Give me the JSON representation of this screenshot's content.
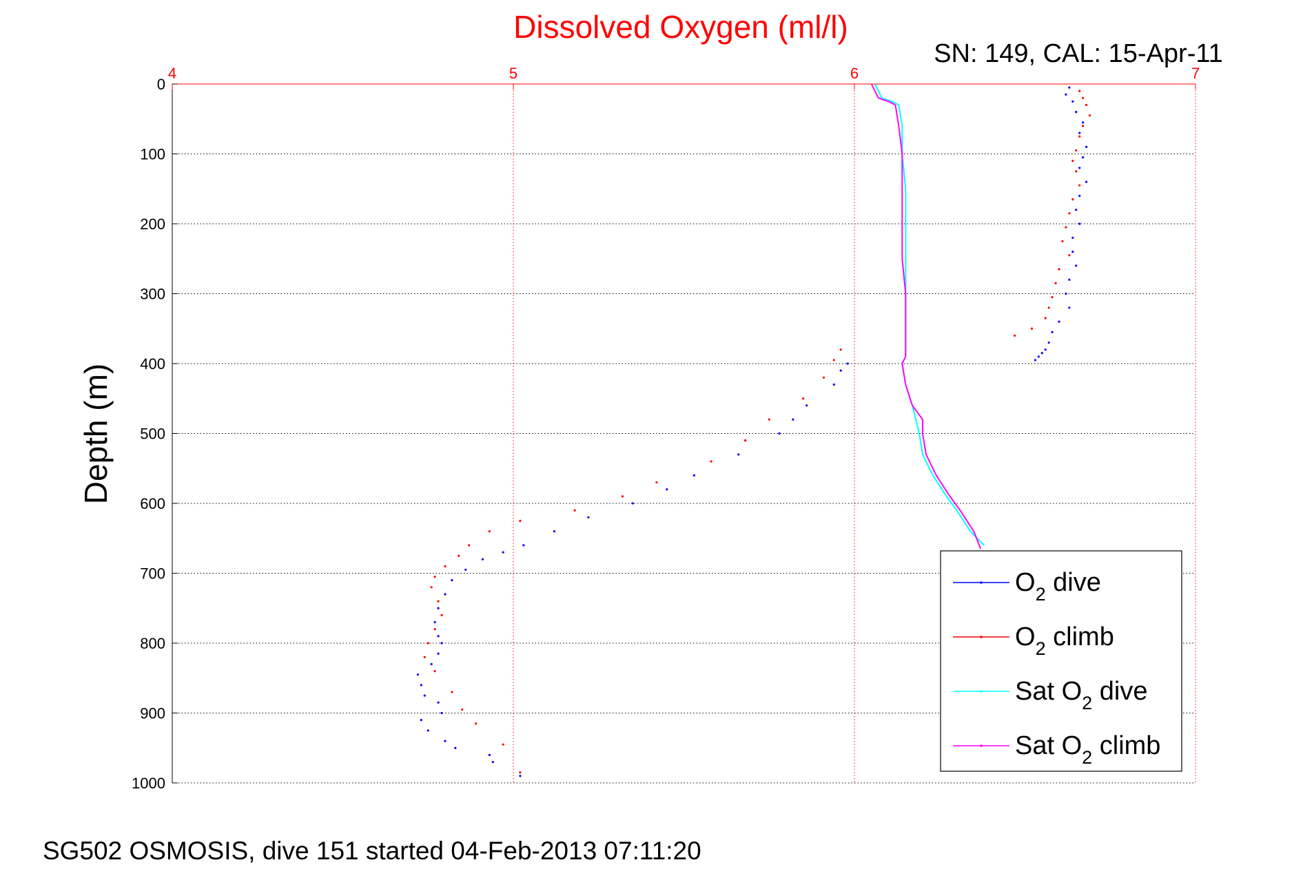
{
  "chart_data": {
    "type": "scatter",
    "title": "Dissolved Oxygen (ml/l)",
    "subtitle": "SN: 149, CAL: 15-Apr-11",
    "xlabel": "",
    "ylabel": "Depth (m)",
    "footer": "SG502 OSMOSIS, dive 151 started 04-Feb-2013 07:11:20",
    "xlim": [
      4,
      7
    ],
    "ylim": [
      0,
      1000
    ],
    "y_reversed": true,
    "x_axis_position": "top",
    "xticks": [
      4,
      5,
      6,
      7
    ],
    "yticks": [
      0,
      100,
      200,
      300,
      400,
      500,
      600,
      700,
      800,
      900,
      1000
    ],
    "grid": true,
    "legend_position": "bottom-right",
    "colors": {
      "o2_dive": "#0000ff",
      "o2_climb": "#ff0000",
      "sat_dive": "#00ffff",
      "sat_climb": "#ff00ff",
      "xaxis": "#ff0000",
      "title": "#ff0000"
    },
    "series": [
      {
        "name": "O2 dive",
        "legend": {
          "main": "O",
          "sub": "2",
          "suffix": " dive"
        },
        "style": "dots",
        "color": "#0000ff",
        "x": [
          6.63,
          6.62,
          6.64,
          6.65,
          6.67,
          6.66,
          6.68,
          6.67,
          6.66,
          6.68,
          6.66,
          6.65,
          6.66,
          6.64,
          6.64,
          6.65,
          6.63,
          6.62,
          6.63,
          6.6,
          6.58,
          6.57,
          6.56,
          6.55,
          6.54,
          6.53,
          5.98,
          5.96,
          5.94,
          5.86,
          5.82,
          5.78,
          5.68,
          5.66,
          5.53,
          5.45,
          5.35,
          5.22,
          5.12,
          5.03,
          4.97,
          4.91,
          4.86,
          4.82,
          4.8,
          4.78,
          4.77,
          4.78,
          4.79,
          4.78,
          4.76,
          4.72,
          4.73,
          4.74,
          4.78,
          4.79,
          4.73,
          4.75,
          4.8,
          4.83,
          4.93,
          4.94,
          5.02
        ],
        "y": [
          5,
          15,
          25,
          40,
          55,
          70,
          90,
          105,
          120,
          140,
          160,
          180,
          200,
          220,
          240,
          260,
          280,
          300,
          320,
          340,
          355,
          370,
          380,
          385,
          390,
          395,
          400,
          410,
          430,
          460,
          480,
          500,
          510,
          530,
          560,
          580,
          600,
          620,
          640,
          660,
          670,
          680,
          695,
          710,
          730,
          750,
          770,
          790,
          800,
          815,
          830,
          845,
          860,
          875,
          885,
          900,
          910,
          925,
          940,
          950,
          960,
          970,
          990
        ]
      },
      {
        "name": "O2 climb",
        "legend": {
          "main": "O",
          "sub": "2",
          "suffix": " climb"
        },
        "style": "dots",
        "color": "#ff0000",
        "x": [
          6.66,
          6.67,
          6.68,
          6.69,
          6.67,
          6.66,
          6.65,
          6.64,
          6.65,
          6.66,
          6.64,
          6.63,
          6.62,
          6.61,
          6.63,
          6.6,
          6.59,
          6.58,
          6.57,
          6.56,
          6.52,
          6.47,
          5.96,
          5.94,
          5.91,
          5.85,
          5.75,
          5.68,
          5.58,
          5.42,
          5.32,
          5.18,
          5.02,
          4.93,
          4.87,
          4.84,
          4.8,
          4.77,
          4.76,
          4.78,
          4.79,
          4.77,
          4.75,
          4.74,
          4.77,
          4.82,
          4.85,
          4.89,
          4.97,
          5.02
        ],
        "y": [
          10,
          20,
          30,
          45,
          60,
          75,
          95,
          110,
          125,
          145,
          165,
          185,
          205,
          225,
          245,
          265,
          285,
          305,
          320,
          335,
          350,
          360,
          380,
          395,
          420,
          450,
          480,
          510,
          540,
          570,
          590,
          610,
          625,
          640,
          660,
          675,
          690,
          705,
          720,
          740,
          760,
          780,
          800,
          820,
          840,
          870,
          895,
          915,
          945,
          985
        ]
      },
      {
        "name": "Sat O2 dive",
        "legend": {
          "main": "Sat O",
          "sub": "2",
          "suffix": " dive"
        },
        "style": "line",
        "color": "#00ffff",
        "x": [
          6.06,
          6.07,
          6.08,
          6.11,
          6.13,
          6.14,
          6.14,
          6.15,
          6.15,
          6.15,
          6.15,
          6.15,
          6.15,
          6.14,
          6.15,
          6.17,
          6.18,
          6.19,
          6.2,
          6.23,
          6.27,
          6.3,
          6.34,
          6.38
        ],
        "y": [
          0,
          10,
          20,
          25,
          30,
          60,
          100,
          150,
          250,
          300,
          350,
          380,
          390,
          400,
          430,
          460,
          480,
          500,
          530,
          560,
          590,
          610,
          640,
          660
        ]
      },
      {
        "name": "Sat O2 climb",
        "legend": {
          "main": "Sat O",
          "sub": "2",
          "suffix": " climb"
        },
        "style": "line",
        "color": "#ff00ff",
        "x": [
          6.05,
          6.06,
          6.07,
          6.1,
          6.12,
          6.13,
          6.14,
          6.14,
          6.14,
          6.15,
          6.15,
          6.15,
          6.15,
          6.14,
          6.15,
          6.17,
          6.2,
          6.2,
          6.21,
          6.24,
          6.28,
          6.31,
          6.35,
          6.37
        ],
        "y": [
          0,
          10,
          20,
          25,
          30,
          60,
          100,
          150,
          250,
          300,
          350,
          380,
          390,
          400,
          430,
          460,
          480,
          500,
          530,
          560,
          590,
          610,
          640,
          665
        ]
      }
    ]
  }
}
